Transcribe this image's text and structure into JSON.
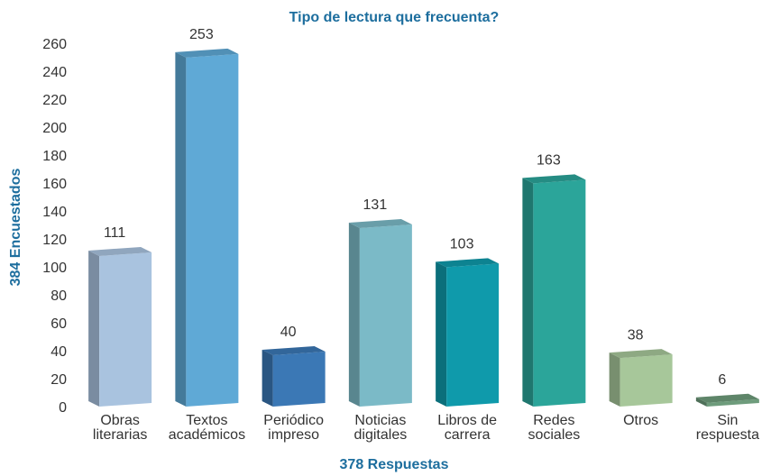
{
  "chart_data": {
    "type": "bar3d",
    "title": "Tipo de lectura que frecuenta?",
    "y_label": "384 Encuestados",
    "x_label": "378 Respuestas",
    "categories": [
      "Obras literarias",
      "Textos académicos",
      "Periódico impreso",
      "Noticias digitales",
      "Libros de carrera",
      "Redes sociales",
      "Otros",
      "Sin respuesta"
    ],
    "values": [
      111,
      253,
      40,
      131,
      103,
      163,
      38,
      6
    ],
    "colors": [
      "#a9c3df",
      "#5fa9d6",
      "#3b78b5",
      "#7bbac7",
      "#0f9aab",
      "#2ba59a",
      "#a7c79a",
      "#6e9c7c"
    ],
    "ylim": [
      0,
      260
    ],
    "yticks": [
      0,
      20,
      40,
      60,
      80,
      100,
      120,
      140,
      160,
      180,
      200,
      220,
      240,
      260
    ]
  }
}
